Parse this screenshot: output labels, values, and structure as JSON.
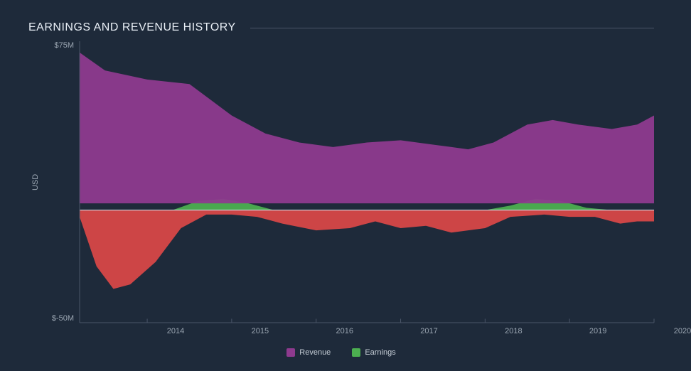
{
  "chart": {
    "type": "area",
    "title": "EARNINGS AND REVENUE HISTORY",
    "title_color": "#e8eef5",
    "title_fontsize": 16,
    "background_color": "#1e2a3a",
    "axis_color": "#9aa5b1",
    "axis_line_color": "#4a5568",
    "tick_fontsize": 11,
    "ylabel": "USD",
    "ylim": [
      -50,
      75
    ],
    "yticks": [
      {
        "v": 75,
        "label": "$75M"
      },
      {
        "v": -50,
        "label": "$-50M"
      }
    ],
    "xticks": [
      2014,
      2015,
      2016,
      2017,
      2018,
      2019,
      2020
    ],
    "x_range": [
      2013.2,
      2020
    ],
    "series": {
      "revenue": {
        "label": "Revenue",
        "color": "#8e3a8e",
        "fill_opacity": 0.95,
        "points": [
          [
            2013.2,
            70
          ],
          [
            2013.5,
            62
          ],
          [
            2014.0,
            58
          ],
          [
            2014.5,
            56
          ],
          [
            2015.0,
            42
          ],
          [
            2015.4,
            34
          ],
          [
            2015.8,
            30
          ],
          [
            2016.2,
            28
          ],
          [
            2016.6,
            30
          ],
          [
            2017.0,
            31
          ],
          [
            2017.4,
            29
          ],
          [
            2017.8,
            27
          ],
          [
            2018.1,
            30
          ],
          [
            2018.5,
            38
          ],
          [
            2018.8,
            40
          ],
          [
            2019.1,
            38
          ],
          [
            2019.5,
            36
          ],
          [
            2019.8,
            38
          ],
          [
            2020.0,
            42
          ]
        ]
      },
      "earnings_pos": {
        "label": "Earnings",
        "color": "#4caf50",
        "fill_opacity": 0.95,
        "points": [
          [
            2013.2,
            0
          ],
          [
            2014.3,
            0
          ],
          [
            2014.6,
            4
          ],
          [
            2014.9,
            5
          ],
          [
            2015.2,
            3
          ],
          [
            2015.5,
            0
          ],
          [
            2016.0,
            0
          ],
          [
            2017.0,
            0
          ],
          [
            2018.0,
            0
          ],
          [
            2018.3,
            2
          ],
          [
            2018.6,
            5
          ],
          [
            2018.9,
            4
          ],
          [
            2019.2,
            1
          ],
          [
            2019.5,
            0
          ],
          [
            2020.0,
            0
          ]
        ]
      },
      "earnings_neg": {
        "color": "#e04848",
        "fill_opacity": 0.9,
        "points": [
          [
            2013.2,
            -3
          ],
          [
            2013.4,
            -25
          ],
          [
            2013.6,
            -35
          ],
          [
            2013.8,
            -33
          ],
          [
            2014.1,
            -23
          ],
          [
            2014.4,
            -8
          ],
          [
            2014.7,
            -2
          ],
          [
            2015.0,
            -2
          ],
          [
            2015.3,
            -3
          ],
          [
            2015.6,
            -6
          ],
          [
            2016.0,
            -9
          ],
          [
            2016.4,
            -8
          ],
          [
            2016.7,
            -5
          ],
          [
            2017.0,
            -8
          ],
          [
            2017.3,
            -7
          ],
          [
            2017.6,
            -10
          ],
          [
            2018.0,
            -8
          ],
          [
            2018.3,
            -3
          ],
          [
            2018.7,
            -2
          ],
          [
            2019.0,
            -3
          ],
          [
            2019.3,
            -3
          ],
          [
            2019.6,
            -6
          ],
          [
            2019.8,
            -5
          ],
          [
            2020.0,
            -5
          ]
        ]
      }
    },
    "legend": [
      {
        "label": "Revenue",
        "color": "#8e3a8e"
      },
      {
        "label": "Earnings",
        "color": "#4caf50"
      }
    ]
  }
}
